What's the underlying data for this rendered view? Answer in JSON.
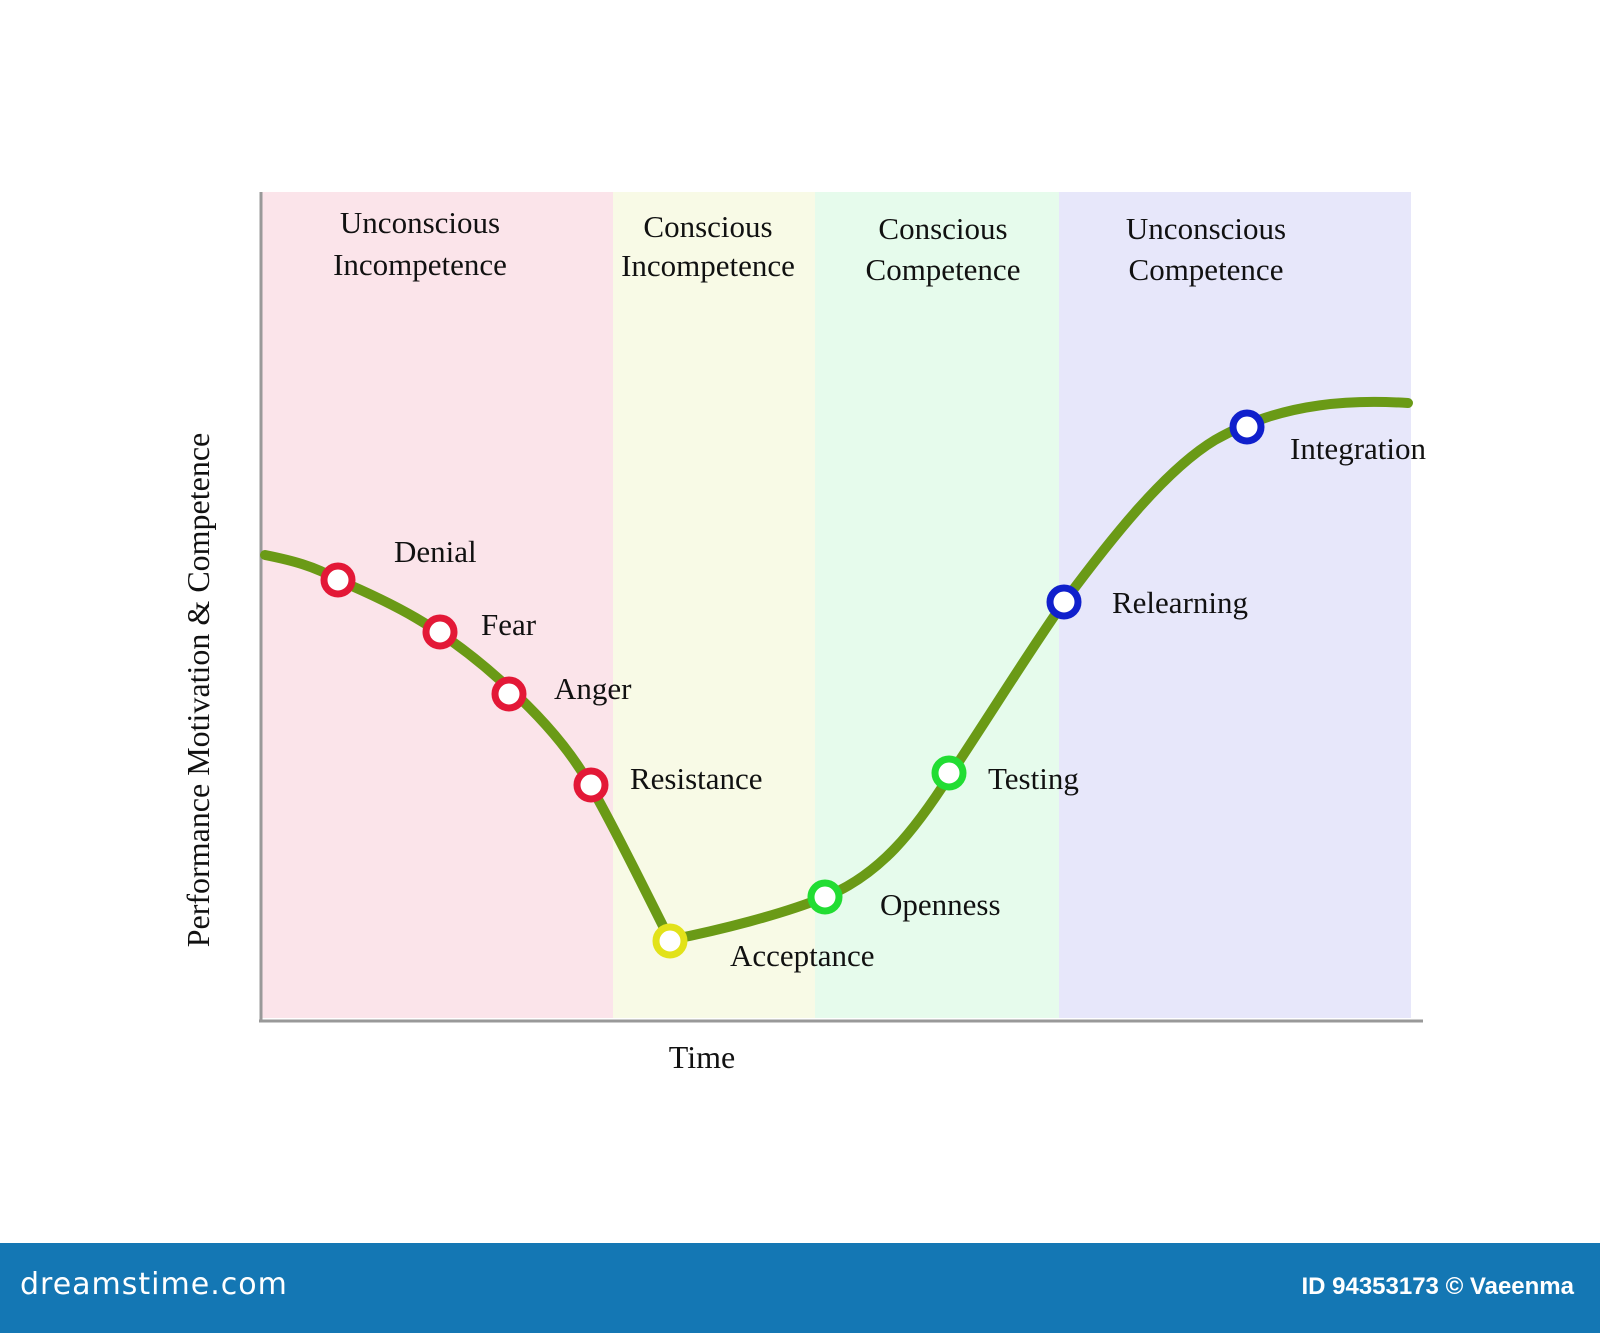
{
  "bands": [
    {
      "label_line1": "Unconscious",
      "label_line2": "Incompetence",
      "color": "#fbe4ea"
    },
    {
      "label_line1": "Conscious",
      "label_line2": "Incompetence",
      "color": "#f8fae6"
    },
    {
      "label_line1": "Conscious",
      "label_line2": "Competence",
      "color": "#e6fbec"
    },
    {
      "label_line1": "Unconscious",
      "label_line2": "Competence",
      "color": "#e7e7fa"
    }
  ],
  "axes": {
    "y_label": "Performance Motivation & Competence",
    "x_label": "Time"
  },
  "curve_color": "#6a9a16",
  "stages": [
    {
      "label": "Denial",
      "color": "#e31837"
    },
    {
      "label": "Fear",
      "color": "#e31837"
    },
    {
      "label": "Anger",
      "color": "#e31837"
    },
    {
      "label": "Resistance",
      "color": "#e31837"
    },
    {
      "label": "Acceptance",
      "color": "#e2e21a"
    },
    {
      "label": "Openness",
      "color": "#22dd33"
    },
    {
      "label": "Testing",
      "color": "#22dd33"
    },
    {
      "label": "Relearning",
      "color": "#1020cc"
    },
    {
      "label": "Integration",
      "color": "#1020cc"
    }
  ],
  "footer": {
    "logo": "dreamstime.com",
    "credit": "ID 94353173 © Vaeenma"
  }
}
